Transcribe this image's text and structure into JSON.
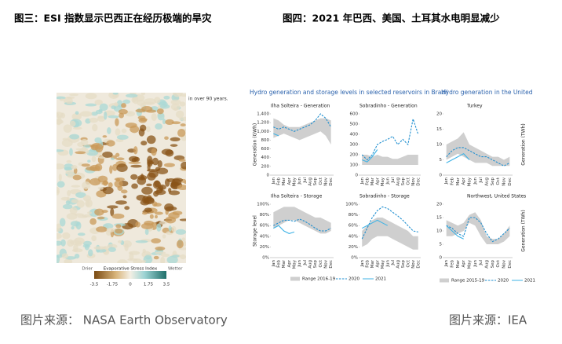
{
  "figure3": {
    "title": "图三：ESI 指数显示巴西正在经历极端的旱灾",
    "source": "图片来源： NASA Earth Observatory",
    "map_note": "in over 90 years.",
    "legend": {
      "left": "Drier",
      "title": "Evaporative Stress Index",
      "right": "Wetter",
      "ticks": [
        -3.5,
        -1.75,
        0,
        1.75,
        3.5
      ]
    }
  },
  "figure4": {
    "title": "图四：2021 年巴西、美国、土耳其水电明显减少",
    "source": "图片来源：IEA",
    "months": [
      "Jan",
      "Feb",
      "Mar",
      "Apr",
      "May",
      "Jun",
      "Jul",
      "Aug",
      "Sep",
      "Oct",
      "Nov",
      "Dec"
    ],
    "groups": [
      {
        "title": "Hydro generation and storage levels in selected reservoirs in Brazil",
        "legend": [
          "Range 2016-19",
          "2020",
          "2021"
        ]
      },
      {
        "title": "Hydro generation in the United Stat",
        "legend": [
          "Range 2015-19",
          "2020",
          "2021"
        ]
      }
    ],
    "panels": [
      {
        "title": "Ilha Solteira - Generation",
        "ylabel": "Generation (GWh)",
        "ylim": [
          0,
          1400
        ],
        "yticks": [
          0,
          200,
          400,
          600,
          800,
          {
            "value": 1000,
            "label": "1,000"
          },
          {
            "value": 1200,
            "label": "1,200"
          },
          {
            "value": 1400,
            "label": "1,400"
          }
        ],
        "range_low": [
          850,
          900,
          950,
          900,
          850,
          800,
          850,
          900,
          950,
          1000,
          900,
          700
        ],
        "range_high": [
          1300,
          1250,
          1150,
          1100,
          1100,
          1100,
          1150,
          1200,
          1250,
          1300,
          1300,
          1250
        ],
        "s2020": [
          1100,
          1050,
          1100,
          1050,
          1000,
          1050,
          1100,
          1150,
          1250,
          1400,
          1300,
          1100
        ],
        "s2021": [
          950,
          900
        ]
      },
      {
        "title": "Sobradinho - Generation",
        "ylim": [
          0,
          600
        ],
        "yticks": [
          0,
          100,
          200,
          300,
          400,
          500,
          600
        ],
        "range_low": [
          100,
          100,
          100,
          100,
          100,
          100,
          100,
          100,
          100,
          100,
          100,
          100
        ],
        "range_high": [
          200,
          200,
          180,
          200,
          180,
          180,
          160,
          160,
          180,
          200,
          200,
          200
        ],
        "s2020": [
          200,
          150,
          200,
          300,
          330,
          350,
          380,
          300,
          350,
          300,
          550,
          400
        ],
        "s2021": [
          150,
          130,
          180,
          250
        ]
      },
      {
        "title": "Turkey",
        "ylabel": "Generation (TWh)",
        "ylim": [
          0,
          20
        ],
        "yticks": [
          0,
          5,
          10,
          15,
          20
        ],
        "range_low": [
          5,
          6,
          7,
          6,
          5,
          4,
          4,
          4,
          3,
          3,
          3,
          3
        ],
        "range_high": [
          10,
          11,
          12,
          14,
          10,
          9,
          8,
          7,
          6,
          6,
          5,
          6
        ],
        "s2020": [
          6,
          8,
          9,
          9,
          8,
          7,
          6,
          6,
          5,
          4,
          3,
          4
        ],
        "s2021": [
          4,
          5,
          6,
          7,
          5
        ]
      },
      {
        "title": "Ilha Solteira - Storage",
        "ylabel": "Storage level",
        "ylim": [
          0,
          100
        ],
        "yticks": [
          {
            "value": 0,
            "label": "0%"
          },
          {
            "value": 20,
            "label": "20%"
          },
          {
            "value": 40,
            "label": "40%"
          },
          {
            "value": 60,
            "label": "60%"
          },
          {
            "value": 80,
            "label": "80%"
          },
          {
            "value": 100,
            "label": "100%"
          }
        ],
        "range_low": [
          55,
          60,
          65,
          70,
          70,
          65,
          60,
          55,
          50,
          45,
          45,
          50
        ],
        "range_high": [
          85,
          90,
          95,
          95,
          95,
          90,
          85,
          80,
          75,
          75,
          70,
          65
        ],
        "s2020": [
          60,
          65,
          70,
          70,
          68,
          72,
          68,
          62,
          55,
          50,
          50,
          55
        ],
        "s2021": [
          55,
          60,
          50,
          45,
          48
        ]
      },
      {
        "title": "Sobradinho - Storage",
        "ylim": [
          0,
          100
        ],
        "yticks": [
          {
            "value": 0,
            "label": "0%"
          },
          {
            "value": 20,
            "label": "20%"
          },
          {
            "value": 40,
            "label": "40%"
          },
          {
            "value": 60,
            "label": "60%"
          },
          {
            "value": 80,
            "label": "80%"
          },
          {
            "value": 100,
            "label": "100%"
          }
        ],
        "range_low": [
          20,
          25,
          35,
          40,
          40,
          40,
          35,
          30,
          25,
          20,
          15,
          15
        ],
        "range_high": [
          50,
          60,
          70,
          75,
          75,
          70,
          65,
          60,
          55,
          50,
          40,
          40
        ],
        "s2020": [
          35,
          55,
          75,
          88,
          95,
          92,
          85,
          78,
          70,
          60,
          50,
          48
        ],
        "s2021": [
          55,
          60,
          65,
          70,
          65,
          60
        ]
      },
      {
        "title": "Northwest, United States",
        "ylabel": "Generation (TWh)",
        "ylim": [
          0,
          20
        ],
        "yticks": [
          0,
          5,
          10,
          15,
          20
        ],
        "range_low": [
          8,
          8,
          9,
          10,
          13,
          12,
          8,
          5,
          5,
          5,
          6,
          8
        ],
        "range_high": [
          14,
          13,
          12,
          13,
          16,
          17,
          14,
          8,
          7,
          7,
          9,
          12
        ],
        "s2020": [
          12,
          11,
          9,
          8,
          15,
          15,
          13,
          9,
          6,
          7,
          9,
          11
        ],
        "s2021": [
          12,
          10,
          8,
          7
        ]
      }
    ]
  }
}
